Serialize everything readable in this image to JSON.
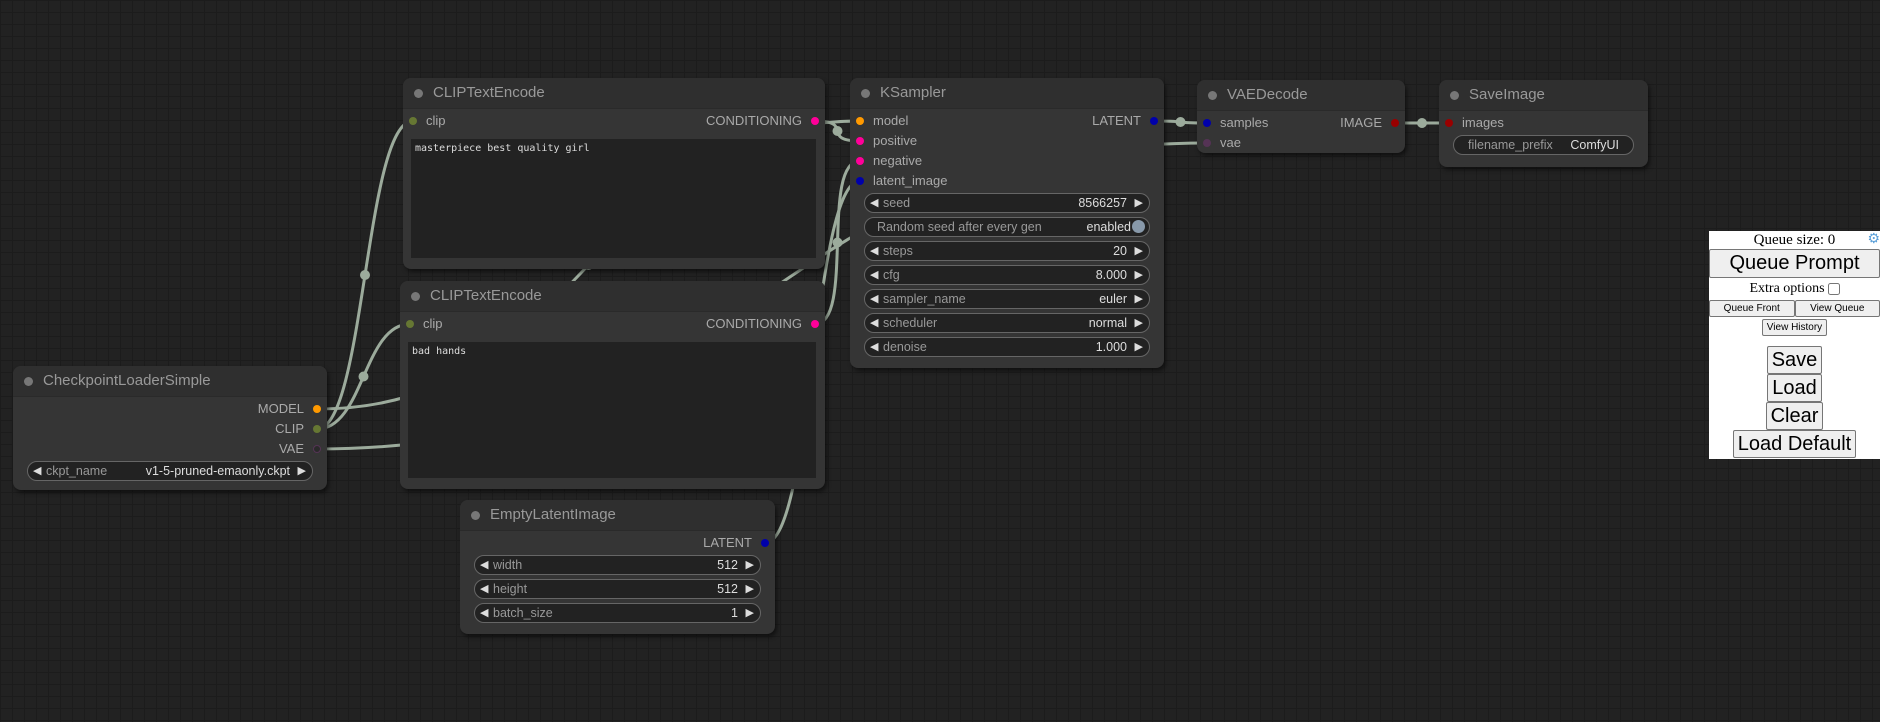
{
  "colors": {
    "wire": "#9cab9c",
    "model": "#ff9900",
    "clip": "#667733",
    "vae": "#553355",
    "conditioning": "#ff0099",
    "latent": "#0000aa",
    "image": "#990000",
    "background": "#222222",
    "node": "#353535"
  },
  "nodes": [
    {
      "id": "checkpoint",
      "title": "CheckpointLoaderSimple",
      "inputs": [],
      "outputs": [
        {
          "label": "MODEL",
          "type": "model"
        },
        {
          "label": "CLIP",
          "type": "clip"
        },
        {
          "label": "VAE",
          "type": "vae"
        }
      ],
      "widgets": [
        {
          "kind": "combo",
          "label": "ckpt_name",
          "value": "v1-5-pruned-emaonly.ckpt"
        }
      ]
    },
    {
      "id": "clip_pos",
      "title": "CLIPTextEncode",
      "inputs": [
        {
          "label": "clip",
          "type": "clip"
        }
      ],
      "outputs": [
        {
          "label": "CONDITIONING",
          "type": "conditioning"
        }
      ],
      "text": "masterpiece best quality girl",
      "widgets": []
    },
    {
      "id": "clip_neg",
      "title": "CLIPTextEncode",
      "inputs": [
        {
          "label": "clip",
          "type": "clip"
        }
      ],
      "outputs": [
        {
          "label": "CONDITIONING",
          "type": "conditioning"
        }
      ],
      "text": "bad hands",
      "widgets": []
    },
    {
      "id": "empty_latent",
      "title": "EmptyLatentImage",
      "inputs": [],
      "outputs": [
        {
          "label": "LATENT",
          "type": "latent"
        }
      ],
      "widgets": [
        {
          "kind": "number",
          "label": "width",
          "value": "512"
        },
        {
          "kind": "number",
          "label": "height",
          "value": "512"
        },
        {
          "kind": "number",
          "label": "batch_size",
          "value": "1"
        }
      ]
    },
    {
      "id": "ksampler",
      "title": "KSampler",
      "inputs": [
        {
          "label": "model",
          "type": "model"
        },
        {
          "label": "positive",
          "type": "conditioning"
        },
        {
          "label": "negative",
          "type": "conditioning"
        },
        {
          "label": "latent_image",
          "type": "latent"
        }
      ],
      "outputs": [
        {
          "label": "LATENT",
          "type": "latent"
        }
      ],
      "widgets": [
        {
          "kind": "number",
          "label": "seed",
          "value": "8566257"
        },
        {
          "kind": "toggle",
          "label": "Random seed after every gen",
          "value": "enabled"
        },
        {
          "kind": "number",
          "label": "steps",
          "value": "20"
        },
        {
          "kind": "number",
          "label": "cfg",
          "value": "8.000"
        },
        {
          "kind": "combo",
          "label": "sampler_name",
          "value": "euler"
        },
        {
          "kind": "combo",
          "label": "scheduler",
          "value": "normal"
        },
        {
          "kind": "number",
          "label": "denoise",
          "value": "1.000"
        }
      ]
    },
    {
      "id": "vae_decode",
      "title": "VAEDecode",
      "inputs": [
        {
          "label": "samples",
          "type": "latent"
        },
        {
          "label": "vae",
          "type": "vae"
        }
      ],
      "outputs": [
        {
          "label": "IMAGE",
          "type": "image"
        }
      ],
      "widgets": []
    },
    {
      "id": "save_image",
      "title": "SaveImage",
      "inputs": [
        {
          "label": "images",
          "type": "image"
        }
      ],
      "outputs": [],
      "widgets": [
        {
          "kind": "text",
          "label": "filename_prefix",
          "value": "ComfyUI"
        }
      ]
    }
  ],
  "queue_panel": {
    "queue_size": "Queue size: 0",
    "queue_prompt": "Queue Prompt",
    "extra_options": "Extra options",
    "extra_options_checked": false,
    "queue_front": "Queue Front",
    "view_queue": "View Queue",
    "view_history": "View History",
    "save": "Save",
    "load": "Load",
    "clear": "Clear",
    "load_default": "Load Default"
  }
}
